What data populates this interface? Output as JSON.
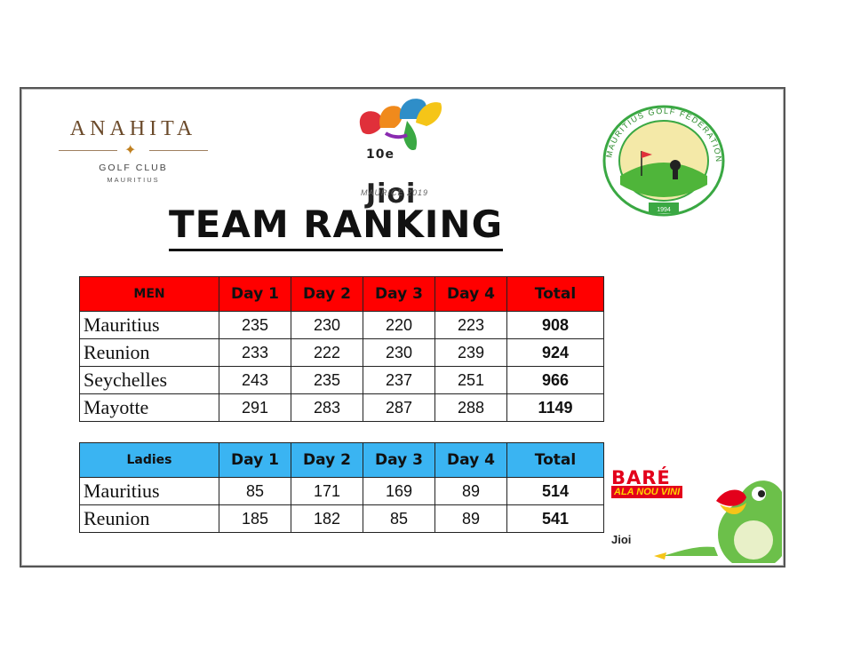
{
  "logos": {
    "anahita": {
      "name": "ANAHITA",
      "line1": "GOLF CLUB",
      "line2": "MAURITIUS"
    },
    "jioi": {
      "edition": "10e",
      "name": "Jioi",
      "subtitle": "MAURICE 2019"
    },
    "federation": {
      "ring_text": "MAURITIUS GOLF FEDERATION",
      "year": "1994"
    },
    "mascot": {
      "line1": "BARÉ",
      "line2": "ALA NOU VINI",
      "mini": "Jioi"
    }
  },
  "title": "TEAM RANKING",
  "men": {
    "headers": [
      "MEN",
      "Day 1",
      "Day 2",
      "Day 3",
      "Day 4",
      "Total"
    ],
    "rows": [
      [
        "Mauritius",
        "235",
        "230",
        "220",
        "223",
        "908"
      ],
      [
        "Reunion",
        "233",
        "222",
        "230",
        "239",
        "924"
      ],
      [
        "Seychelles",
        "243",
        "235",
        "237",
        "251",
        "966"
      ],
      [
        "Mayotte",
        "291",
        "283",
        "287",
        "288",
        "1149"
      ]
    ]
  },
  "ladies": {
    "headers": [
      "Ladies",
      "Day 1",
      "Day 2",
      "Day 3",
      "Day 4",
      "Total"
    ],
    "rows": [
      [
        "Mauritius",
        "85",
        "171",
        "169",
        "89",
        "514"
      ],
      [
        "Reunion",
        "185",
        "182",
        "85",
        "89",
        "541"
      ]
    ]
  },
  "colors": {
    "men_header": "#ff0000",
    "ladies_header": "#3ab4f2",
    "text": "#111111"
  }
}
